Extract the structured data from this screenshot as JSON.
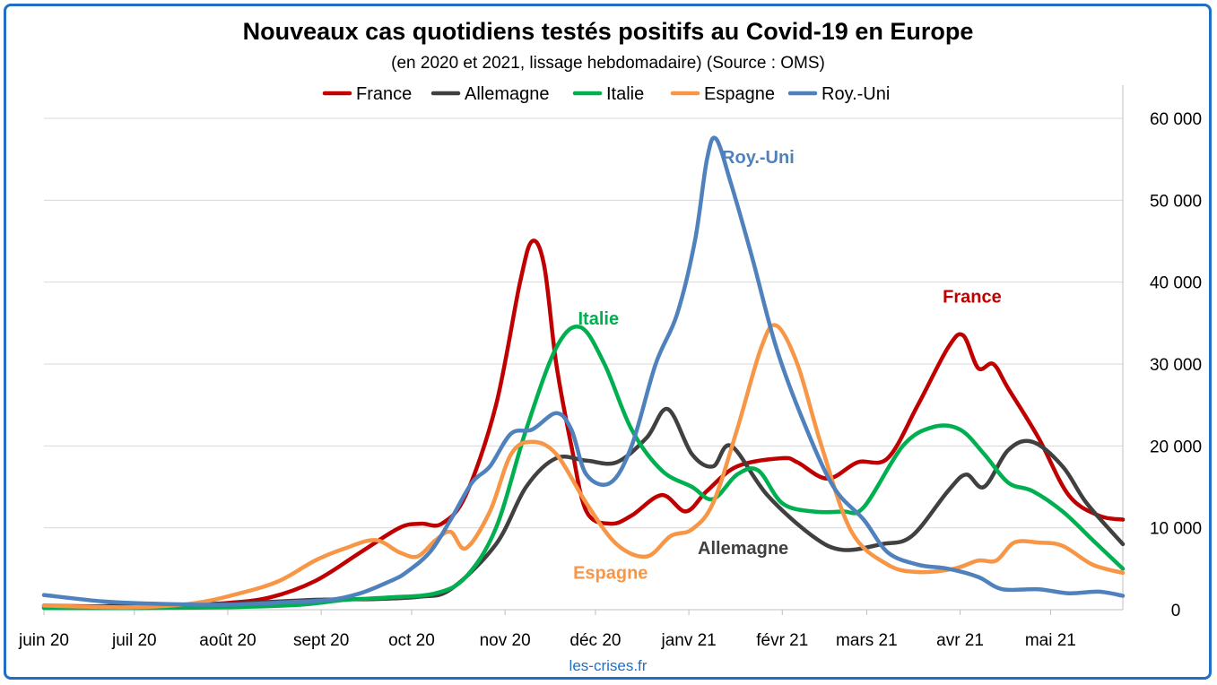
{
  "chart_data": {
    "type": "line",
    "title": "Nouveaux cas quotidiens testés positifs au Covid-19 en Europe",
    "subtitle": "(en 2020 et 2021, lissage hebdomadaire) (Source : OMS)",
    "source": "les-crises.fr",
    "xlabel": "",
    "ylabel": "",
    "ylim": [
      0,
      60000
    ],
    "yticks": [
      0,
      10000,
      20000,
      30000,
      40000,
      50000,
      60000
    ],
    "ytick_labels": [
      "0",
      "10 000",
      "20 000",
      "30 000",
      "40 000",
      "50 000",
      "60 000"
    ],
    "y_axis_side": "right",
    "grid": true,
    "legend_position": "top",
    "x_range_days": [
      0,
      358
    ],
    "x_ticks": [
      {
        "label": "juin 20",
        "day": 0
      },
      {
        "label": "juil 20",
        "day": 30
      },
      {
        "label": "août 20",
        "day": 61
      },
      {
        "label": "sept 20",
        "day": 92
      },
      {
        "label": "oct 20",
        "day": 122
      },
      {
        "label": "nov 20",
        "day": 153
      },
      {
        "label": "déc 20",
        "day": 183
      },
      {
        "label": "janv 21",
        "day": 214
      },
      {
        "label": "févr 21",
        "day": 245
      },
      {
        "label": "mars 21",
        "day": 273
      },
      {
        "label": "avr 21",
        "day": 304
      },
      {
        "label": "mai 21",
        "day": 334
      }
    ],
    "series": [
      {
        "name": "France",
        "color": "#c00000",
        "points": [
          [
            0,
            500
          ],
          [
            20,
            400
          ],
          [
            40,
            500
          ],
          [
            60,
            800
          ],
          [
            75,
            1500
          ],
          [
            90,
            3500
          ],
          [
            105,
            7000
          ],
          [
            118,
            10000
          ],
          [
            125,
            10500
          ],
          [
            132,
            10500
          ],
          [
            140,
            14000
          ],
          [
            150,
            25000
          ],
          [
            158,
            40000
          ],
          [
            162,
            45000
          ],
          [
            166,
            42000
          ],
          [
            170,
            30000
          ],
          [
            175,
            20000
          ],
          [
            180,
            12000
          ],
          [
            188,
            10500
          ],
          [
            195,
            11500
          ],
          [
            205,
            14000
          ],
          [
            213,
            12000
          ],
          [
            220,
            14500
          ],
          [
            230,
            17500
          ],
          [
            245,
            18500
          ],
          [
            250,
            18000
          ],
          [
            260,
            16000
          ],
          [
            270,
            18000
          ],
          [
            280,
            18500
          ],
          [
            290,
            25000
          ],
          [
            300,
            32000
          ],
          [
            305,
            33500
          ],
          [
            310,
            29500
          ],
          [
            315,
            30000
          ],
          [
            320,
            27000
          ],
          [
            330,
            21000
          ],
          [
            340,
            14000
          ],
          [
            350,
            11500
          ],
          [
            358,
            11000
          ]
        ]
      },
      {
        "name": "Allemagne",
        "color": "#404040",
        "points": [
          [
            0,
            300
          ],
          [
            30,
            500
          ],
          [
            60,
            700
          ],
          [
            90,
            1200
          ],
          [
            110,
            1300
          ],
          [
            125,
            1600
          ],
          [
            135,
            2500
          ],
          [
            150,
            8000
          ],
          [
            160,
            15000
          ],
          [
            170,
            18500
          ],
          [
            180,
            18200
          ],
          [
            190,
            18000
          ],
          [
            200,
            21000
          ],
          [
            207,
            24500
          ],
          [
            215,
            19000
          ],
          [
            222,
            17500
          ],
          [
            228,
            20000
          ],
          [
            240,
            14000
          ],
          [
            255,
            9000
          ],
          [
            265,
            7300
          ],
          [
            278,
            8000
          ],
          [
            288,
            9000
          ],
          [
            300,
            14500
          ],
          [
            306,
            16500
          ],
          [
            312,
            15000
          ],
          [
            320,
            19500
          ],
          [
            328,
            20500
          ],
          [
            338,
            17500
          ],
          [
            346,
            13000
          ],
          [
            358,
            8000
          ]
        ]
      },
      {
        "name": "Italie",
        "color": "#00b050",
        "points": [
          [
            0,
            200
          ],
          [
            30,
            200
          ],
          [
            60,
            300
          ],
          [
            85,
            600
          ],
          [
            100,
            1200
          ],
          [
            115,
            1500
          ],
          [
            130,
            2000
          ],
          [
            140,
            4000
          ],
          [
            150,
            10000
          ],
          [
            160,
            22000
          ],
          [
            170,
            32000
          ],
          [
            178,
            34500
          ],
          [
            186,
            30000
          ],
          [
            195,
            22000
          ],
          [
            205,
            17000
          ],
          [
            215,
            15000
          ],
          [
            222,
            13500
          ],
          [
            230,
            16500
          ],
          [
            237,
            17000
          ],
          [
            245,
            13000
          ],
          [
            255,
            12000
          ],
          [
            265,
            12000
          ],
          [
            272,
            12500
          ],
          [
            285,
            20000
          ],
          [
            295,
            22300
          ],
          [
            304,
            22000
          ],
          [
            312,
            19000
          ],
          [
            320,
            15500
          ],
          [
            328,
            14500
          ],
          [
            338,
            12000
          ],
          [
            348,
            8500
          ],
          [
            358,
            5000
          ]
        ]
      },
      {
        "name": "Espagne",
        "color": "#f79646",
        "points": [
          [
            0,
            500
          ],
          [
            30,
            300
          ],
          [
            50,
            800
          ],
          [
            65,
            2000
          ],
          [
            78,
            3500
          ],
          [
            90,
            6000
          ],
          [
            100,
            7500
          ],
          [
            110,
            8500
          ],
          [
            118,
            7000
          ],
          [
            124,
            6500
          ],
          [
            130,
            8500
          ],
          [
            135,
            9500
          ],
          [
            140,
            7500
          ],
          [
            148,
            12000
          ],
          [
            155,
            19000
          ],
          [
            162,
            20500
          ],
          [
            170,
            19000
          ],
          [
            180,
            13000
          ],
          [
            190,
            8000
          ],
          [
            200,
            6500
          ],
          [
            208,
            9000
          ],
          [
            215,
            9800
          ],
          [
            222,
            13000
          ],
          [
            230,
            22000
          ],
          [
            238,
            32000
          ],
          [
            243,
            34700
          ],
          [
            250,
            30000
          ],
          [
            258,
            20000
          ],
          [
            268,
            9500
          ],
          [
            280,
            5500
          ],
          [
            290,
            4600
          ],
          [
            302,
            5000
          ],
          [
            310,
            6000
          ],
          [
            316,
            6000
          ],
          [
            322,
            8200
          ],
          [
            330,
            8200
          ],
          [
            338,
            7800
          ],
          [
            348,
            5500
          ],
          [
            358,
            4500
          ]
        ]
      },
      {
        "name": "Roy.-Uni",
        "color": "#4f81bd",
        "points": [
          [
            0,
            1800
          ],
          [
            20,
            1000
          ],
          [
            40,
            700
          ],
          [
            60,
            600
          ],
          [
            80,
            900
          ],
          [
            95,
            1200
          ],
          [
            105,
            2000
          ],
          [
            115,
            3500
          ],
          [
            120,
            4500
          ],
          [
            128,
            7000
          ],
          [
            135,
            11000
          ],
          [
            142,
            15500
          ],
          [
            148,
            17500
          ],
          [
            155,
            21500
          ],
          [
            162,
            22000
          ],
          [
            170,
            24000
          ],
          [
            175,
            22000
          ],
          [
            180,
            16500
          ],
          [
            188,
            15500
          ],
          [
            195,
            20000
          ],
          [
            203,
            30000
          ],
          [
            210,
            36000
          ],
          [
            216,
            45000
          ],
          [
            220,
            55000
          ],
          [
            223,
            57500
          ],
          [
            228,
            52000
          ],
          [
            235,
            43000
          ],
          [
            243,
            32000
          ],
          [
            252,
            23000
          ],
          [
            262,
            15000
          ],
          [
            272,
            11000
          ],
          [
            280,
            7000
          ],
          [
            290,
            5500
          ],
          [
            300,
            5000
          ],
          [
            310,
            4000
          ],
          [
            318,
            2500
          ],
          [
            330,
            2500
          ],
          [
            340,
            2000
          ],
          [
            350,
            2200
          ],
          [
            358,
            1700
          ]
        ]
      }
    ],
    "annotations": [
      {
        "text": "Roy.-Uni",
        "series": "Roy.-Uni",
        "day": 237,
        "value": 54500
      },
      {
        "text": "Italie",
        "series": "Italie",
        "day": 184,
        "value": 34800
      },
      {
        "text": "France",
        "series": "France",
        "day": 308,
        "value": 37500
      },
      {
        "text": "Allemagne",
        "series": "Allemagne",
        "day": 232,
        "value": 6800
      },
      {
        "text": "Espagne",
        "series": "Espagne",
        "day": 188,
        "value": 3800
      }
    ]
  }
}
